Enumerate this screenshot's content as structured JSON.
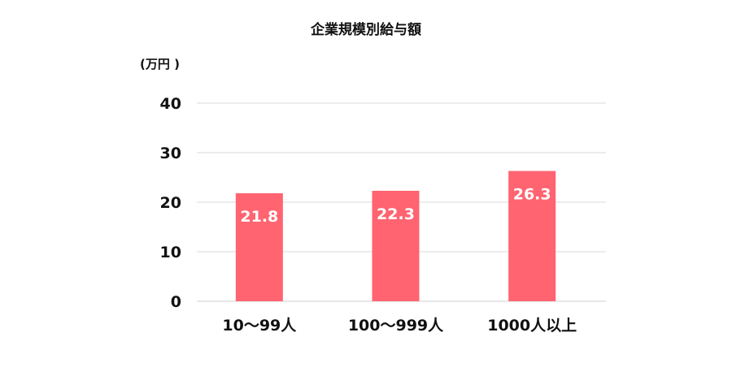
{
  "chart_data": {
    "type": "bar",
    "title": "企業規模別給与額",
    "ylabel": "(万円 )",
    "xlabel": "",
    "categories": [
      "10～99人",
      "100～999人",
      "1000人以上"
    ],
    "values": [
      21.8,
      22.3,
      26.3
    ],
    "data_labels": [
      "21.8",
      "22.3",
      "26.3"
    ],
    "ylim": [
      0,
      40
    ],
    "yticks": [
      0,
      10,
      20,
      30,
      40
    ],
    "ytick_labels": [
      "0",
      "10",
      "20",
      "30",
      "40"
    ],
    "grid": true,
    "legend": "none",
    "bar_color": "#ff6470"
  }
}
